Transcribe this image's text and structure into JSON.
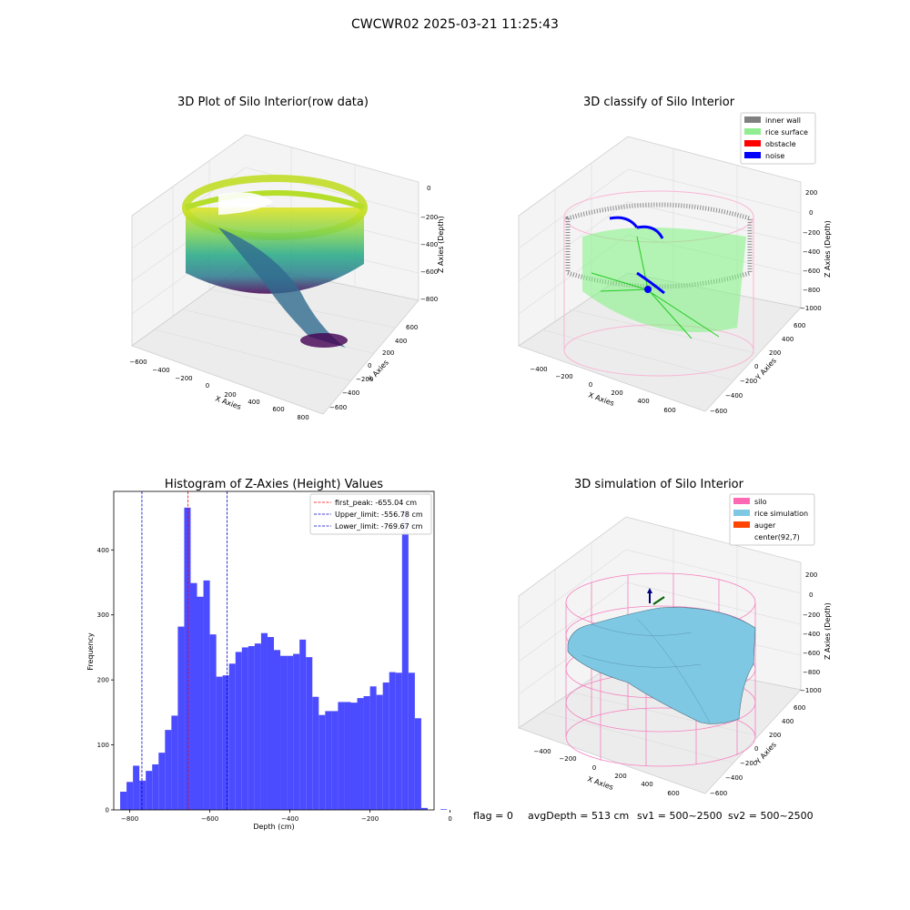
{
  "suptitle": "CWCWR02 2025-03-21 11:25:43",
  "status_line": {
    "flag": "flag = 0",
    "avg_depth": "avgDepth = 513 cm",
    "sv1": "sv1 = 500~2500",
    "sv2": "sv2 = 500~2500"
  },
  "colors": {
    "histogram_bar": "#4b4bff",
    "first_peak": "#ff0000",
    "limits": "#0000cc",
    "inner_wall": "#808080",
    "rice_surface": "#90ee90",
    "obstacle": "#ff0000",
    "noise": "#0000ff",
    "silo": "#ff69b4",
    "rice_simulation": "#7ec8e3",
    "auger": "#ff4500"
  },
  "chart_data": [
    {
      "type": "scatter3d",
      "title": "3D Plot of Silo Interior(row data)",
      "xlabel": "X Axies",
      "ylabel": "Y Axies",
      "zlabel": "Z Axies (Depth)",
      "x_ticks": [
        "−600",
        "−400",
        "−200",
        "0",
        "200",
        "400",
        "600",
        "800"
      ],
      "y_ticks": [
        "600",
        "400",
        "200",
        "0",
        "−200",
        "−400",
        "−600"
      ],
      "z_ticks": [
        "0",
        "−200",
        "−400",
        "−600",
        "−800"
      ],
      "colormap": "viridis"
    },
    {
      "type": "scatter3d",
      "title": "3D classify of Silo Interior",
      "xlabel": "X Axies",
      "ylabel": "Y Axies",
      "zlabel": "Z Axies (Depth)",
      "x_ticks": [
        "−400",
        "−200",
        "0",
        "200",
        "400",
        "600"
      ],
      "y_ticks": [
        "600",
        "400",
        "200",
        "0",
        "−200",
        "−400",
        "−600"
      ],
      "z_ticks": [
        "200",
        "0",
        "−200",
        "−400",
        "−600",
        "−800",
        "−1000"
      ],
      "legend": [
        "inner wall",
        "rice surface",
        "obstacle",
        "noise"
      ],
      "legend_position": "top-right"
    },
    {
      "type": "bar",
      "title": "Histogram of Z-Axies (Height) Values",
      "xlabel": "Depth (cm)",
      "ylabel": "Frequency",
      "xlim": [
        -840,
        -40
      ],
      "ylim": [
        0,
        490
      ],
      "x_ticks": [
        -800,
        -600,
        -400,
        -200,
        0
      ],
      "x_tick_labels": [
        "−800",
        "−600",
        "−400",
        "−200",
        "0"
      ],
      "y_ticks": [
        0,
        100,
        200,
        300,
        400
      ],
      "y_tick_labels": [
        "0",
        "100",
        "200",
        "300",
        "400"
      ],
      "bin_width": 16,
      "bin_start": -824,
      "values": [
        28,
        43,
        68,
        45,
        60,
        70,
        88,
        123,
        145,
        282,
        465,
        349,
        328,
        353,
        270,
        205,
        207,
        225,
        243,
        250,
        252,
        256,
        272,
        266,
        246,
        237,
        237,
        240,
        262,
        235,
        174,
        146,
        152,
        152,
        166,
        166,
        165,
        172,
        175,
        190,
        177,
        196,
        212,
        211,
        462,
        211,
        141,
        3,
        0,
        0,
        1
      ],
      "lines": [
        {
          "label": "first_peak: -655.04 cm",
          "x": -655.04,
          "style": "dashed",
          "color": "#ff0000"
        },
        {
          "label": "Upper_limit: -556.78 cm",
          "x": -556.78,
          "style": "dashed",
          "color": "#0000cc"
        },
        {
          "label": "Lower_limit: -769.67 cm",
          "x": -769.67,
          "style": "dashed",
          "color": "#0000cc"
        }
      ],
      "legend_position": "top-right"
    },
    {
      "type": "surface3d",
      "title": "3D simulation of Silo Interior",
      "xlabel": "X Axies",
      "ylabel": "Y Axies",
      "zlabel": "Z Axies (Depth)",
      "x_ticks": [
        "−400",
        "−200",
        "0",
        "200",
        "400",
        "600"
      ],
      "y_ticks": [
        "600",
        "400",
        "200",
        "0",
        "−200",
        "−400",
        "−600"
      ],
      "z_ticks": [
        "200",
        "0",
        "−200",
        "−400",
        "−600",
        "−800",
        "−1000"
      ],
      "legend": [
        "silo",
        "rice simulation",
        "auger",
        "center(92,7)"
      ],
      "legend_position": "top-right"
    }
  ]
}
